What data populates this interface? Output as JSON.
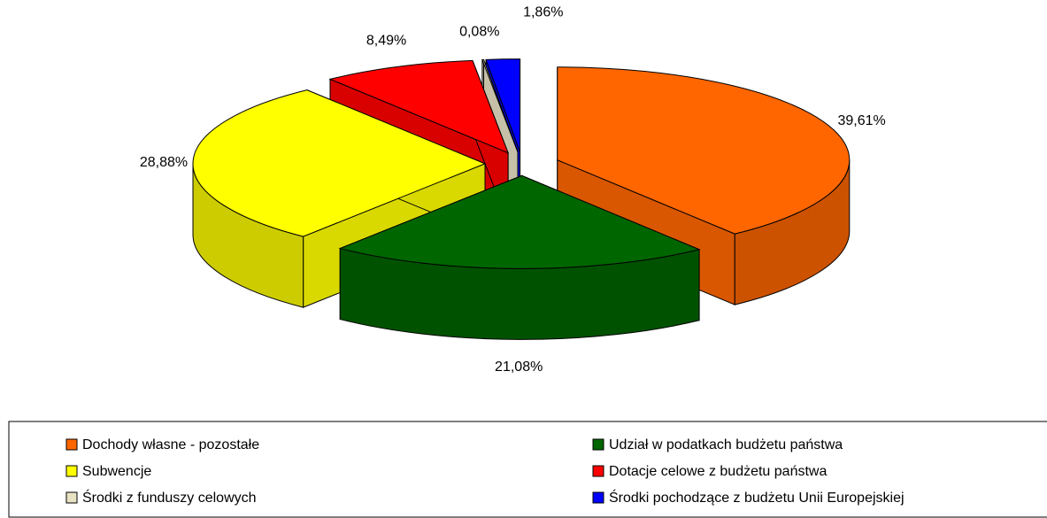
{
  "chart_data": {
    "type": "pie3d",
    "categories": [
      "Dochody własne - pozostałe",
      "Udział w podatkach budżetu państwa",
      "Subwencje",
      "Dotacje celowe z budżetu państwa",
      "Środki z funduszy celowych",
      "Środki pochodzące z budżetu Unii Europejskiej"
    ],
    "values": [
      39.61,
      21.08,
      28.88,
      8.49,
      0.08,
      1.86
    ],
    "value_labels": [
      "39,61%",
      "21,08%",
      "28,88%",
      "8,49%",
      "0,08%",
      "1,86%"
    ],
    "colors": [
      "#ff6600",
      "#006600",
      "#ffff00",
      "#ff0000",
      "#e8e2c4",
      "#0000ff"
    ],
    "legend": "bottom"
  }
}
